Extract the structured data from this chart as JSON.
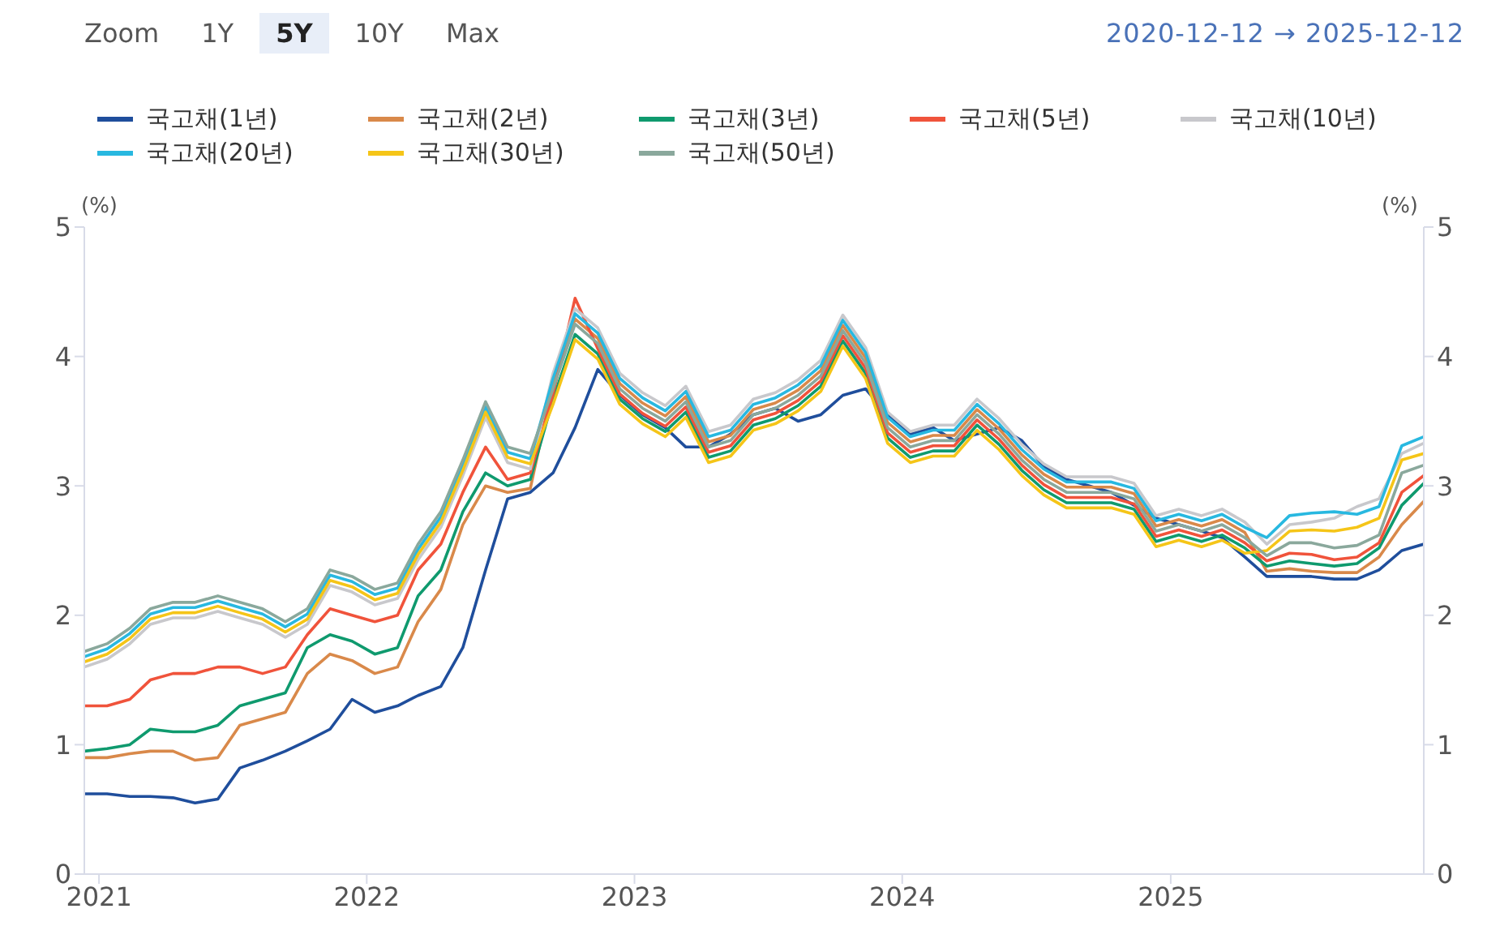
{
  "chart_data": {
    "type": "line",
    "annotations": [
      "Zoom",
      "1Y",
      "5Y",
      "10Y",
      "Max",
      "2020-12-12 → 2025-12-12"
    ],
    "ylabel": "(%)",
    "y2label": "(%)",
    "x": [
      "2020-12-12",
      "2021-01-12",
      "2021-02-12",
      "2021-03-12",
      "2021-04-12",
      "2021-05-12",
      "2021-06-12",
      "2021-07-12",
      "2021-08-12",
      "2021-09-12",
      "2021-10-12",
      "2021-11-12",
      "2021-12-12",
      "2022-01-12",
      "2022-02-12",
      "2022-03-12",
      "2022-04-12",
      "2022-05-12",
      "2022-06-12",
      "2022-07-12",
      "2022-08-12",
      "2022-09-12",
      "2022-10-12",
      "2022-11-12",
      "2022-12-12",
      "2023-01-12",
      "2023-02-12",
      "2023-03-12",
      "2023-04-12",
      "2023-05-12",
      "2023-06-12",
      "2023-07-12",
      "2023-08-12",
      "2023-09-12",
      "2023-10-12",
      "2023-11-12",
      "2023-12-12",
      "2024-01-12",
      "2024-02-12",
      "2024-03-12",
      "2024-04-12",
      "2024-05-12",
      "2024-06-12",
      "2024-07-12",
      "2024-08-12",
      "2024-09-12",
      "2024-10-12",
      "2024-11-12",
      "2024-12-12",
      "2025-01-12",
      "2025-02-12",
      "2025-03-12",
      "2025-04-12",
      "2025-05-12",
      "2025-06-12",
      "2025-07-12",
      "2025-08-12",
      "2025-09-12",
      "2025-10-12",
      "2025-11-12",
      "2025-12-12"
    ],
    "series": [
      {
        "name": "국고채(1년)",
        "color": "#1f4e9c",
        "values": [
          0.62,
          0.62,
          0.6,
          0.6,
          0.59,
          0.55,
          0.58,
          0.82,
          0.88,
          0.95,
          1.03,
          1.12,
          1.35,
          1.25,
          1.3,
          1.38,
          1.45,
          1.75,
          2.35,
          2.9,
          2.95,
          3.1,
          3.45,
          3.9,
          3.7,
          3.55,
          3.45,
          3.3,
          3.3,
          3.4,
          3.55,
          3.6,
          3.5,
          3.55,
          3.7,
          3.75,
          3.55,
          3.4,
          3.45,
          3.35,
          3.4,
          3.45,
          3.35,
          3.15,
          3.05,
          3.0,
          2.95,
          2.85,
          2.75,
          2.7,
          2.65,
          2.6,
          2.45,
          2.3,
          2.3,
          2.3,
          2.28,
          2.28,
          2.35,
          2.5,
          2.55
        ]
      },
      {
        "name": "국고채(2년)",
        "color": "#d9894a",
        "values": [
          0.9,
          0.9,
          0.93,
          0.95,
          0.95,
          0.88,
          0.9,
          1.15,
          1.2,
          1.25,
          1.55,
          1.7,
          1.65,
          1.55,
          1.6,
          1.95,
          2.2,
          2.7,
          3.0,
          2.95,
          2.98,
          3.79,
          4.29,
          4.14,
          3.79,
          3.64,
          3.54,
          3.69,
          3.34,
          3.39,
          3.59,
          3.64,
          3.74,
          3.89,
          4.24,
          3.99,
          3.49,
          3.34,
          3.39,
          3.39,
          3.59,
          3.44,
          3.24,
          3.09,
          2.99,
          2.99,
          2.99,
          2.94,
          2.69,
          2.74,
          2.69,
          2.74,
          2.64,
          2.34,
          2.36,
          2.34,
          2.33,
          2.33,
          2.45,
          2.7,
          2.88
        ]
      },
      {
        "name": "국고채(3년)",
        "color": "#0f9a6e",
        "values": [
          0.95,
          0.97,
          1.0,
          1.12,
          1.1,
          1.1,
          1.15,
          1.3,
          1.35,
          1.4,
          1.75,
          1.85,
          1.8,
          1.7,
          1.75,
          2.15,
          2.35,
          2.8,
          3.1,
          3.0,
          3.05,
          3.67,
          4.17,
          4.02,
          3.67,
          3.52,
          3.42,
          3.57,
          3.22,
          3.27,
          3.47,
          3.52,
          3.62,
          3.77,
          4.12,
          3.87,
          3.37,
          3.22,
          3.27,
          3.27,
          3.47,
          3.32,
          3.12,
          2.97,
          2.87,
          2.87,
          2.87,
          2.82,
          2.57,
          2.62,
          2.57,
          2.62,
          2.52,
          2.38,
          2.42,
          2.4,
          2.38,
          2.4,
          2.52,
          2.85,
          3.02
        ]
      },
      {
        "name": "국고채(5년)",
        "color": "#f0533b",
        "values": [
          1.3,
          1.3,
          1.35,
          1.5,
          1.55,
          1.55,
          1.6,
          1.6,
          1.55,
          1.6,
          1.85,
          2.05,
          2.0,
          1.95,
          2.0,
          2.35,
          2.55,
          2.95,
          3.3,
          3.05,
          3.1,
          3.71,
          4.45,
          4.06,
          3.71,
          3.56,
          3.46,
          3.61,
          3.26,
          3.31,
          3.51,
          3.56,
          3.66,
          3.81,
          4.16,
          3.91,
          3.41,
          3.26,
          3.31,
          3.31,
          3.51,
          3.36,
          3.16,
          3.01,
          2.91,
          2.91,
          2.91,
          2.86,
          2.61,
          2.66,
          2.61,
          2.66,
          2.56,
          2.42,
          2.48,
          2.47,
          2.43,
          2.45,
          2.56,
          2.95,
          3.08
        ]
      },
      {
        "name": "국고채(10년)",
        "color": "#c8c8cc",
        "values": [
          1.6,
          1.66,
          1.78,
          1.93,
          1.98,
          1.98,
          2.03,
          1.98,
          1.93,
          1.83,
          1.93,
          2.23,
          2.18,
          2.08,
          2.13,
          2.43,
          2.68,
          3.08,
          3.53,
          3.18,
          3.13,
          3.87,
          4.37,
          4.22,
          3.87,
          3.72,
          3.62,
          3.77,
          3.42,
          3.47,
          3.67,
          3.72,
          3.82,
          3.97,
          4.32,
          4.07,
          3.57,
          3.42,
          3.47,
          3.47,
          3.67,
          3.52,
          3.32,
          3.17,
          3.07,
          3.07,
          3.07,
          3.02,
          2.77,
          2.82,
          2.77,
          2.82,
          2.72,
          2.55,
          2.7,
          2.72,
          2.75,
          2.84,
          2.9,
          3.25,
          3.33
        ]
      },
      {
        "name": "국고채(20년)",
        "color": "#28b8e0",
        "values": [
          1.68,
          1.74,
          1.86,
          2.01,
          2.06,
          2.06,
          2.11,
          2.06,
          2.01,
          1.91,
          2.01,
          2.31,
          2.26,
          2.16,
          2.21,
          2.51,
          2.76,
          3.16,
          3.61,
          3.26,
          3.21,
          3.83,
          4.33,
          4.18,
          3.83,
          3.68,
          3.58,
          3.73,
          3.38,
          3.43,
          3.63,
          3.68,
          3.78,
          3.93,
          4.28,
          4.03,
          3.53,
          3.38,
          3.43,
          3.43,
          3.63,
          3.48,
          3.28,
          3.13,
          3.03,
          3.03,
          3.03,
          2.98,
          2.73,
          2.78,
          2.73,
          2.78,
          2.68,
          2.6,
          2.77,
          2.79,
          2.8,
          2.78,
          2.84,
          3.31,
          3.38
        ]
      },
      {
        "name": "국고채(30년)",
        "color": "#f5c518",
        "values": [
          1.64,
          1.7,
          1.82,
          1.97,
          2.02,
          2.02,
          2.07,
          2.02,
          1.97,
          1.87,
          1.97,
          2.27,
          2.22,
          2.12,
          2.17,
          2.47,
          2.72,
          3.12,
          3.57,
          3.22,
          3.17,
          3.63,
          4.13,
          3.98,
          3.63,
          3.48,
          3.38,
          3.53,
          3.18,
          3.23,
          3.43,
          3.48,
          3.58,
          3.73,
          4.08,
          3.83,
          3.33,
          3.18,
          3.23,
          3.23,
          3.43,
          3.28,
          3.08,
          2.93,
          2.83,
          2.83,
          2.83,
          2.78,
          2.53,
          2.58,
          2.53,
          2.58,
          2.48,
          2.5,
          2.65,
          2.66,
          2.65,
          2.68,
          2.75,
          3.2,
          3.25
        ]
      },
      {
        "name": "국고채(50년)",
        "color": "#8aa89c",
        "values": [
          1.72,
          1.78,
          1.9,
          2.05,
          2.1,
          2.1,
          2.15,
          2.1,
          2.05,
          1.95,
          2.05,
          2.35,
          2.3,
          2.2,
          2.25,
          2.55,
          2.8,
          3.2,
          3.65,
          3.3,
          3.25,
          3.75,
          4.25,
          4.1,
          3.75,
          3.6,
          3.5,
          3.65,
          3.3,
          3.35,
          3.55,
          3.6,
          3.7,
          3.85,
          4.2,
          3.95,
          3.45,
          3.3,
          3.35,
          3.35,
          3.55,
          3.4,
          3.2,
          3.05,
          2.95,
          2.95,
          2.95,
          2.9,
          2.65,
          2.7,
          2.65,
          2.7,
          2.6,
          2.46,
          2.56,
          2.56,
          2.52,
          2.54,
          2.62,
          3.1,
          3.16
        ]
      }
    ],
    "xlim": [
      "2020-12-12",
      "2025-12-12"
    ],
    "xticks": [
      {
        "value": "2021-01-01",
        "label": "2021"
      },
      {
        "value": "2022-01-01",
        "label": "2022"
      },
      {
        "value": "2023-01-01",
        "label": "2023"
      },
      {
        "value": "2024-01-01",
        "label": "2024"
      },
      {
        "value": "2025-01-01",
        "label": "2025"
      }
    ],
    "ylim": [
      0,
      5
    ],
    "yticks": [
      0,
      1,
      2,
      3,
      4,
      5
    ],
    "y2lim": [
      0,
      5
    ],
    "y2ticks": [
      0,
      1,
      2,
      3,
      4,
      5
    ],
    "grid": false,
    "legend": "top",
    "marker": "none",
    "line_style": "solid"
  }
}
